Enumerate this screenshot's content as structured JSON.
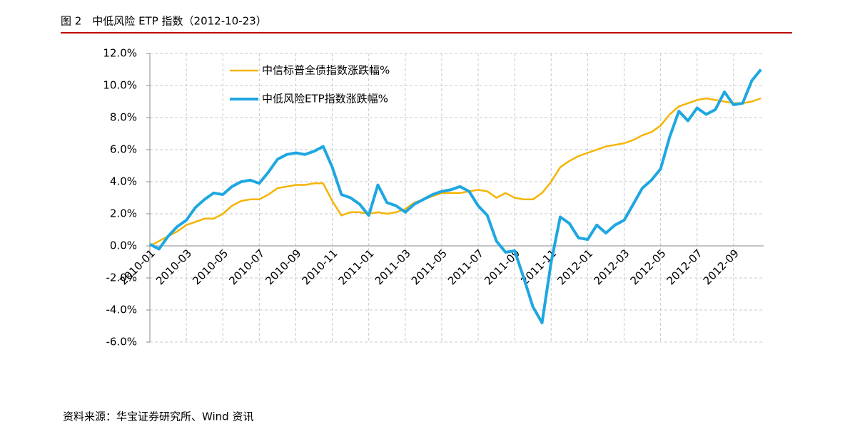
{
  "chart_data": {
    "type": "line",
    "title": "图 2　中低风险 ETP 指数（2012-10-23）",
    "source": "资料来源：华宝证券研究所、Wind 资讯",
    "categories": [
      "2010-01",
      null,
      null,
      null,
      "2010-03",
      null,
      null,
      null,
      "2010-05",
      null,
      null,
      null,
      "2010-07",
      null,
      null,
      null,
      "2010-09",
      null,
      null,
      null,
      "2010-11",
      null,
      null,
      null,
      "2011-01",
      null,
      null,
      null,
      "2011-03",
      null,
      null,
      null,
      "2011-05",
      null,
      null,
      null,
      "2011-07",
      null,
      null,
      null,
      "2011-09",
      null,
      null,
      null,
      "2011-11",
      null,
      null,
      null,
      "2012-01",
      null,
      null,
      null,
      "2012-03",
      null,
      null,
      null,
      "2012-05",
      null,
      null,
      null,
      "2012-07",
      null,
      null,
      null,
      "2012-09",
      null,
      null,
      null
    ],
    "series": [
      {
        "name": "中信标普全债指数涨跌幅%",
        "color": "#f5b400",
        "width": 2.5,
        "values": [
          0.0,
          0.3,
          0.6,
          0.9,
          1.3,
          1.5,
          1.7,
          1.7,
          2.0,
          2.5,
          2.8,
          2.9,
          2.9,
          3.2,
          3.6,
          3.7,
          3.8,
          3.8,
          3.9,
          3.9,
          2.8,
          1.9,
          2.1,
          2.1,
          2.0,
          2.1,
          2.0,
          2.1,
          2.3,
          2.7,
          2.9,
          3.1,
          3.3,
          3.3,
          3.3,
          3.4,
          3.5,
          3.4,
          3.0,
          3.3,
          3.0,
          2.9,
          2.9,
          3.3,
          4.0,
          4.9,
          5.3,
          5.6,
          5.8,
          6.0,
          6.2,
          6.3,
          6.4,
          6.6,
          6.9,
          7.1,
          7.5,
          8.2,
          8.7,
          8.9,
          9.1,
          9.2,
          9.1,
          9.0,
          8.9,
          8.9,
          9.0,
          9.2
        ]
      },
      {
        "name": "中低风险ETP指数涨跌幅%",
        "color": "#1ea7e1",
        "width": 4,
        "values": [
          0.1,
          -0.2,
          0.6,
          1.2,
          1.6,
          2.4,
          2.9,
          3.3,
          3.2,
          3.7,
          4.0,
          4.1,
          3.9,
          4.6,
          5.4,
          5.7,
          5.8,
          5.7,
          5.9,
          6.2,
          4.9,
          3.2,
          3.0,
          2.6,
          1.9,
          3.8,
          2.7,
          2.5,
          2.1,
          2.6,
          2.9,
          3.2,
          3.4,
          3.5,
          3.7,
          3.4,
          2.5,
          1.9,
          0.3,
          -0.4,
          -0.3,
          -2.0,
          -3.8,
          -4.8,
          -1.0,
          1.8,
          1.4,
          0.5,
          0.4,
          1.3,
          0.8,
          1.3,
          1.6,
          2.6,
          3.6,
          4.1,
          4.8,
          6.8,
          8.4,
          7.8,
          8.6,
          8.2,
          8.5,
          9.6,
          8.8,
          8.9,
          10.3,
          11.0
        ]
      }
    ],
    "ylim": [
      -6,
      12
    ],
    "yticks": [
      {
        "value": -6,
        "label": "-6.0%"
      },
      {
        "value": -4,
        "label": "-4.0%"
      },
      {
        "value": -2,
        "label": "-2.0%"
      },
      {
        "value": 0,
        "label": "0.0%"
      },
      {
        "value": 2,
        "label": "2.0%"
      },
      {
        "value": 4,
        "label": "4.0%"
      },
      {
        "value": 6,
        "label": "6.0%"
      },
      {
        "value": 8,
        "label": "8.0%"
      },
      {
        "value": 10,
        "label": "10.0%"
      },
      {
        "value": 12,
        "label": "12.0%"
      }
    ],
    "grid": true,
    "legend": "upper left"
  }
}
